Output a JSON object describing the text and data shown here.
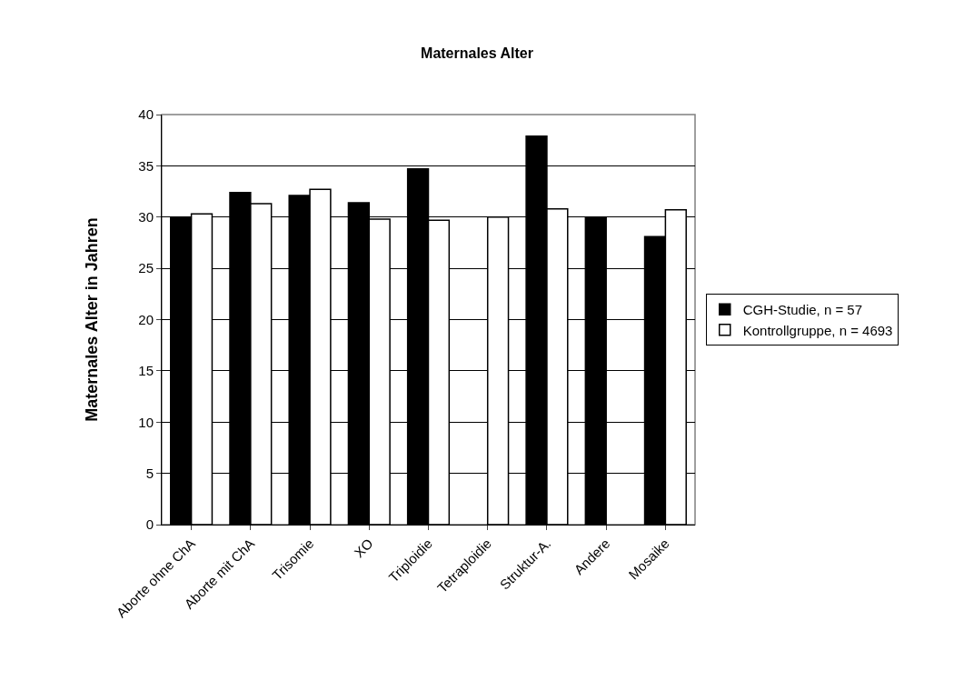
{
  "chart_data": {
    "type": "bar",
    "title": "Maternales Alter",
    "ylabel": "Maternales Alter in Jahren",
    "categories": [
      "Aborte ohne ChA",
      "Aborte mit ChA",
      "Trisomie",
      "XO",
      "Triploidie",
      "Tetraploidie",
      "Struktur-A.",
      "Andere",
      "Mosaike"
    ],
    "series": [
      {
        "name": "CGH-Studie, n = 57",
        "color": "#000000",
        "values": [
          30.0,
          32.4,
          32.1,
          31.4,
          34.7,
          null,
          37.9,
          30.0,
          28.1
        ]
      },
      {
        "name": "Kontrollgruppe, n = 4693",
        "color": "#ffffff",
        "values": [
          30.3,
          31.3,
          32.7,
          29.8,
          29.7,
          30.0,
          30.8,
          null,
          30.7
        ]
      }
    ],
    "ylim": [
      0,
      40
    ],
    "yticks": [
      0,
      5,
      10,
      15,
      20,
      25,
      30,
      35,
      40
    ],
    "grid": "y",
    "legend": "right"
  }
}
